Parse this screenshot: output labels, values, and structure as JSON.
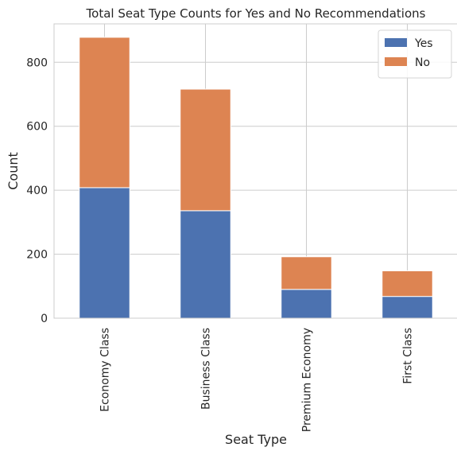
{
  "chart_data": {
    "type": "bar",
    "stacked": true,
    "title": "Total Seat Type Counts for Yes and No Recommendations",
    "xlabel": "Seat Type",
    "ylabel": "Count",
    "categories": [
      "Economy Class",
      "Business Class",
      "Premium Economy",
      "First Class"
    ],
    "series": [
      {
        "name": "Yes",
        "color": "#4c72b0",
        "values": [
          408,
          336,
          90,
          68
        ]
      },
      {
        "name": "No",
        "color": "#dd8452",
        "values": [
          470,
          380,
          102,
          80
        ]
      }
    ],
    "ylim": [
      0,
      920
    ],
    "yticks": [
      0,
      200,
      400,
      600,
      800
    ],
    "grid": true,
    "legend": "top-right"
  }
}
